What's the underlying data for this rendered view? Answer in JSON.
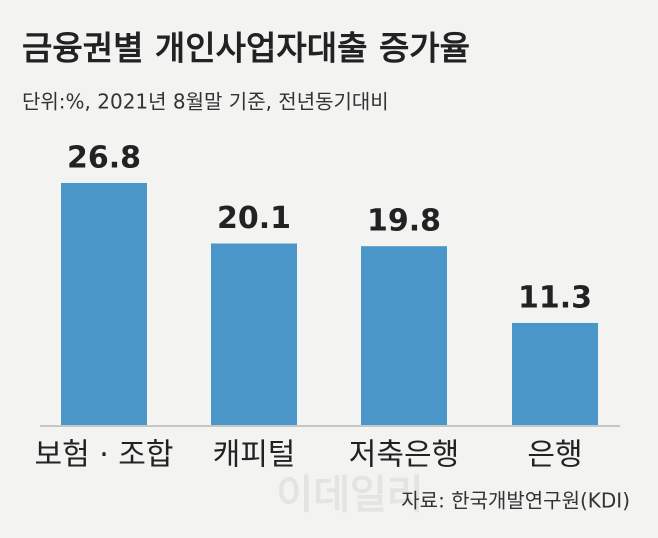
{
  "chart_data": {
    "type": "bar",
    "title": "금융권별 개인사업자대출 증가율",
    "subtitle": "단위:%, 2021년 8월말 기준, 전년동기대비",
    "categories": [
      "보험 · 조합",
      "캐피털",
      "저축은행",
      "은행"
    ],
    "values": [
      26.8,
      20.1,
      19.8,
      11.3
    ],
    "color": "#4a96c8",
    "source": "자료: 한국개발연구원(KDI)",
    "watermark": "이데일리"
  }
}
